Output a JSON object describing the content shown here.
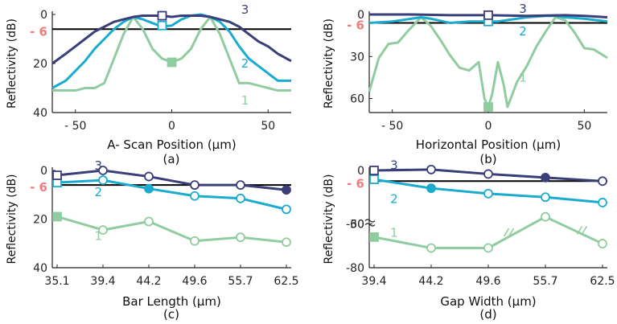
{
  "colors": {
    "s1": "#90CCA0",
    "s2": "#1AABCF",
    "s3": "#3A3F7A",
    "threshold": "#000000",
    "neg6": "#F07C7C",
    "axis": "#222222"
  },
  "chart_data": [
    {
      "id": "a",
      "type": "line",
      "caption": "(a)",
      "xlabel": "A- Scan Position (μm)",
      "ylabel": "Reflectivity (dB)",
      "xlim": [
        -62,
        62
      ],
      "ylim": [
        0,
        40
      ],
      "yticks": [
        {
          "v": 0,
          "t": "0"
        },
        {
          "v": 20,
          "t": "20"
        },
        {
          "v": 40,
          "t": "40"
        }
      ],
      "xticks": [
        {
          "v": -50,
          "t": "- 50"
        },
        {
          "v": 0,
          "t": "0"
        },
        {
          "v": 50,
          "t": "50"
        }
      ],
      "threshold": 6,
      "threshold_label": "- 6",
      "series": [
        {
          "name": "1",
          "color": "s1",
          "x": [
            -62,
            -55,
            -50,
            -45,
            -40,
            -35,
            -30,
            -25,
            -20,
            -15,
            -10,
            -5,
            0,
            5,
            10,
            15,
            20,
            25,
            30,
            35,
            40,
            45,
            50,
            55,
            62
          ],
          "y": [
            31,
            31,
            31,
            30,
            30,
            28,
            18,
            8,
            1,
            6,
            14,
            18,
            19.5,
            18,
            14,
            6,
            1,
            8,
            18,
            28,
            28,
            29,
            30,
            31,
            31
          ],
          "marker": {
            "x": 0,
            "y": 19.5,
            "shape": "square-filled"
          },
          "label": {
            "text": "1",
            "x": 38,
            "y": 35
          }
        },
        {
          "name": "2",
          "color": "s2",
          "x": [
            -62,
            -55,
            -50,
            -45,
            -40,
            -35,
            -30,
            -25,
            -20,
            -15,
            -10,
            -5,
            0,
            5,
            10,
            15,
            20,
            25,
            30,
            35,
            40,
            45,
            50,
            55,
            62
          ],
          "y": [
            30,
            27,
            23,
            19,
            14,
            10,
            6,
            3,
            1,
            2,
            3.5,
            5,
            4.5,
            2,
            0.5,
            0,
            1,
            3,
            7,
            13,
            18,
            21,
            24,
            27,
            27
          ],
          "marker": {
            "x": -5,
            "y": 4.5,
            "shape": "square-open"
          },
          "label": {
            "text": "2",
            "x": 38,
            "y": 20
          }
        },
        {
          "name": "3",
          "color": "s3",
          "x": [
            -62,
            -55,
            -50,
            -45,
            -40,
            -35,
            -30,
            -25,
            -20,
            -15,
            -10,
            -5,
            0,
            5,
            10,
            15,
            20,
            25,
            30,
            35,
            40,
            45,
            50,
            55,
            62
          ],
          "y": [
            20,
            16,
            13,
            10,
            7,
            5,
            3,
            2,
            1,
            0.5,
            0.5,
            0.5,
            1,
            0.5,
            0.5,
            0.5,
            1,
            2,
            3,
            5,
            8,
            11,
            13,
            16,
            19
          ],
          "marker": {
            "x": -5,
            "y": 0.5,
            "shape": "square-open"
          },
          "label": {
            "text": "3",
            "x": 38,
            "y": -2
          }
        }
      ]
    },
    {
      "id": "b",
      "type": "line",
      "caption": "(b)",
      "xlabel": "Horizontal Position (μm)",
      "ylabel": "Reflectivity (dB)",
      "xlim": [
        -62,
        62
      ],
      "ylim": [
        0,
        70
      ],
      "yticks": [
        {
          "v": 0,
          "t": "0"
        },
        {
          "v": 30,
          "t": "30"
        },
        {
          "v": 60,
          "t": "60"
        }
      ],
      "xticks": [
        {
          "v": -50,
          "t": "- 50"
        },
        {
          "v": 0,
          "t": "0"
        },
        {
          "v": 50,
          "t": "50"
        }
      ],
      "threshold": 6,
      "threshold_label": "- 6",
      "series": [
        {
          "name": "1",
          "color": "s1",
          "x": [
            -62,
            -57,
            -52,
            -47,
            -42,
            -35,
            -30,
            -25,
            -20,
            -15,
            -10,
            -5,
            -2,
            0,
            2,
            5,
            8,
            10,
            15,
            20,
            25,
            30,
            35,
            40,
            45,
            50,
            55,
            62
          ],
          "y": [
            55,
            31,
            21,
            20,
            12,
            2,
            8,
            18,
            29,
            38,
            40,
            34,
            60,
            66,
            57,
            34,
            50,
            66,
            48,
            37,
            23,
            12,
            2,
            4,
            13,
            24,
            25,
            31
          ],
          "marker": {
            "x": 0,
            "y": 66,
            "shape": "square-filled"
          },
          "label": {
            "text": "1",
            "x": 18,
            "y": 45
          }
        },
        {
          "name": "2",
          "color": "s2",
          "x": [
            -62,
            -50,
            -40,
            -35,
            -30,
            -20,
            -10,
            -5,
            0,
            5,
            10,
            20,
            30,
            35,
            40,
            50,
            62
          ],
          "y": [
            6,
            5,
            3,
            2,
            3,
            6,
            5,
            5,
            5,
            5,
            4,
            2,
            1,
            1,
            2,
            3,
            5
          ],
          "marker": {
            "x": 0,
            "y": 5,
            "shape": "square-open"
          },
          "label": {
            "text": "2",
            "x": 18,
            "y": 12
          }
        },
        {
          "name": "3",
          "color": "s3",
          "x": [
            -62,
            -40,
            -20,
            0,
            20,
            40,
            50,
            62
          ],
          "y": [
            0,
            0,
            0.5,
            0.5,
            1,
            0.5,
            1,
            2
          ],
          "marker": {
            "x": 0,
            "y": 0.5,
            "shape": "square-open"
          },
          "label": {
            "text": "3",
            "x": 18,
            "y": -4
          }
        }
      ]
    },
    {
      "id": "c",
      "type": "line",
      "caption": "(c)",
      "xlabel": "Bar Length (μm)",
      "ylabel": "Reflectivity (dB)",
      "categories": [
        "35.1",
        "39.4",
        "44.2",
        "49.6",
        "55.7",
        "62.5"
      ],
      "ylim": [
        0,
        40
      ],
      "yticks": [
        {
          "v": 0,
          "t": "0"
        },
        {
          "v": 20,
          "t": "20"
        },
        {
          "v": 40,
          "t": "40"
        }
      ],
      "threshold": 6,
      "threshold_label": "- 6",
      "series": [
        {
          "name": "1",
          "color": "s1",
          "values": [
            19,
            24.5,
            21,
            29,
            27.5,
            29.5
          ],
          "markers": [
            "square-filled",
            "circle-open",
            "circle-open",
            "circle-open",
            "circle-open",
            "circle-open"
          ],
          "label": {
            "text": "1",
            "xi": 0.9,
            "y": 27
          }
        },
        {
          "name": "2",
          "color": "s2",
          "values": [
            5,
            4,
            7.5,
            10.5,
            11.5,
            16
          ],
          "markers": [
            "square-open",
            "circle-open",
            "circle-filled",
            "circle-open",
            "circle-open",
            "circle-open"
          ],
          "label": {
            "text": "2",
            "xi": 0.9,
            "y": 9
          }
        },
        {
          "name": "3",
          "color": "s3",
          "values": [
            2,
            0,
            2.5,
            6,
            6,
            8
          ],
          "markers": [
            "square-open",
            "circle-open",
            "circle-open",
            "circle-open",
            "circle-open",
            "circle-filled"
          ],
          "label": {
            "text": "3",
            "xi": 0.9,
            "y": -2
          }
        }
      ]
    },
    {
      "id": "d",
      "type": "line",
      "caption": "(d)",
      "xlabel": "Gap Width (μm)",
      "ylabel": "Reflectivity (dB)",
      "categories": [
        "39.4",
        "44.2",
        "49.6",
        "55.7",
        "62.5"
      ],
      "ylim": [
        0,
        80
      ],
      "axis_break": {
        "lower": 30,
        "upper": 60
      },
      "yticks": [
        {
          "v": 0,
          "t": "0"
        },
        {
          "v": 30,
          "t": "30"
        },
        {
          "v": 60,
          "t": "-60"
        },
        {
          "v": 80,
          "t": "-80"
        }
      ],
      "threshold": 6,
      "threshold_label": "- 6",
      "series": [
        {
          "name": "1",
          "color": "s1",
          "values": [
            66,
            71,
            71,
            26,
            69
          ],
          "markers": [
            "square-filled",
            "circle-open",
            "circle-open",
            "circle-open",
            "circle-open"
          ],
          "label": {
            "text": "1",
            "xi": 0.35,
            "y": 64
          }
        },
        {
          "name": "2",
          "color": "s2",
          "values": [
            5,
            10,
            13,
            15,
            18
          ],
          "markers": [
            "square-open",
            "circle-filled",
            "circle-open",
            "circle-open",
            "circle-open"
          ],
          "label": {
            "text": "2",
            "xi": 0.35,
            "y": 16
          }
        },
        {
          "name": "3",
          "color": "s3",
          "values": [
            0,
            -0.5,
            2,
            4,
            6
          ],
          "markers": [
            "square-open",
            "circle-open",
            "circle-open",
            "circle-filled",
            "circle-open"
          ],
          "label": {
            "text": "3",
            "xi": 0.35,
            "y": -3
          }
        }
      ]
    }
  ]
}
